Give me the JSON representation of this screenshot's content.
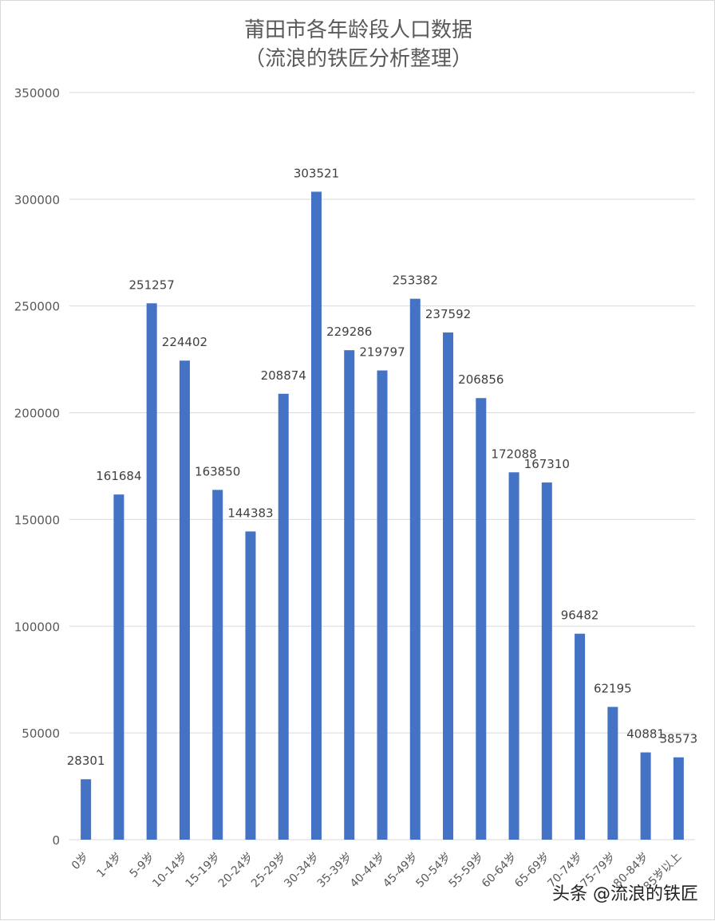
{
  "chart_data": {
    "type": "bar",
    "title": "莆田市各年龄段人口数据",
    "subtitle": "（流浪的铁匠分析整理）",
    "xlabel": "",
    "ylabel": "",
    "ylim": [
      0,
      350000
    ],
    "yticks": [
      0,
      50000,
      100000,
      150000,
      200000,
      250000,
      300000,
      350000
    ],
    "grid": true,
    "color": "#4472C4",
    "categories": [
      "0岁",
      "1-4岁",
      "5-9岁",
      "10-14岁",
      "15-19岁",
      "20-24岁",
      "25-29岁",
      "30-34岁",
      "35-39岁",
      "40-44岁",
      "45-49岁",
      "50-54岁",
      "55-59岁",
      "60-64岁",
      "65-69岁",
      "70-74岁",
      "75-79岁",
      "80-84岁",
      "85岁以上"
    ],
    "values": [
      28301,
      161684,
      251257,
      224402,
      163850,
      144383,
      208874,
      303521,
      229286,
      219797,
      253382,
      237592,
      206856,
      172088,
      167310,
      96482,
      62195,
      40881,
      38573
    ]
  },
  "watermark": "头条 @流浪的铁匠"
}
